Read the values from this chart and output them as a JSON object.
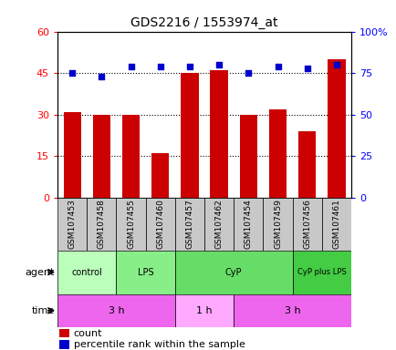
{
  "title": "GDS2216 / 1553974_at",
  "samples": [
    "GSM107453",
    "GSM107458",
    "GSM107455",
    "GSM107460",
    "GSM107457",
    "GSM107462",
    "GSM107454",
    "GSM107459",
    "GSM107456",
    "GSM107461"
  ],
  "counts": [
    31,
    30,
    30,
    16,
    45,
    46,
    30,
    32,
    24,
    50
  ],
  "percentile_ranks": [
    75,
    73,
    79,
    79,
    79,
    80,
    75,
    79,
    78,
    80
  ],
  "left_ylim": [
    0,
    60
  ],
  "right_ylim": [
    0,
    100
  ],
  "left_yticks": [
    0,
    15,
    30,
    45,
    60
  ],
  "right_yticks": [
    0,
    25,
    50,
    75,
    100
  ],
  "right_yticklabels": [
    "0",
    "25",
    "50",
    "75",
    "100%"
  ],
  "bar_color": "#cc0000",
  "dot_color": "#0000cc",
  "agent_groups": [
    {
      "label": "control",
      "start": 0,
      "end": 2,
      "color": "#bbffbb"
    },
    {
      "label": "LPS",
      "start": 2,
      "end": 4,
      "color": "#88ee88"
    },
    {
      "label": "CyP",
      "start": 4,
      "end": 8,
      "color": "#66dd66"
    },
    {
      "label": "CyP plus LPS",
      "start": 8,
      "end": 10,
      "color": "#44cc44"
    }
  ],
  "time_groups": [
    {
      "label": "3 h",
      "start": 0,
      "end": 4,
      "color": "#ee66ee"
    },
    {
      "label": "1 h",
      "start": 4,
      "end": 6,
      "color": "#ffaaff"
    },
    {
      "label": "3 h",
      "start": 6,
      "end": 10,
      "color": "#ee66ee"
    }
  ],
  "legend_count_label": "count",
  "legend_pct_label": "percentile rank within the sample",
  "agent_label": "agent",
  "time_label": "time",
  "grid_lines": [
    15,
    30,
    45
  ],
  "sample_box_color": "#c8c8c8",
  "n_samples": 10
}
